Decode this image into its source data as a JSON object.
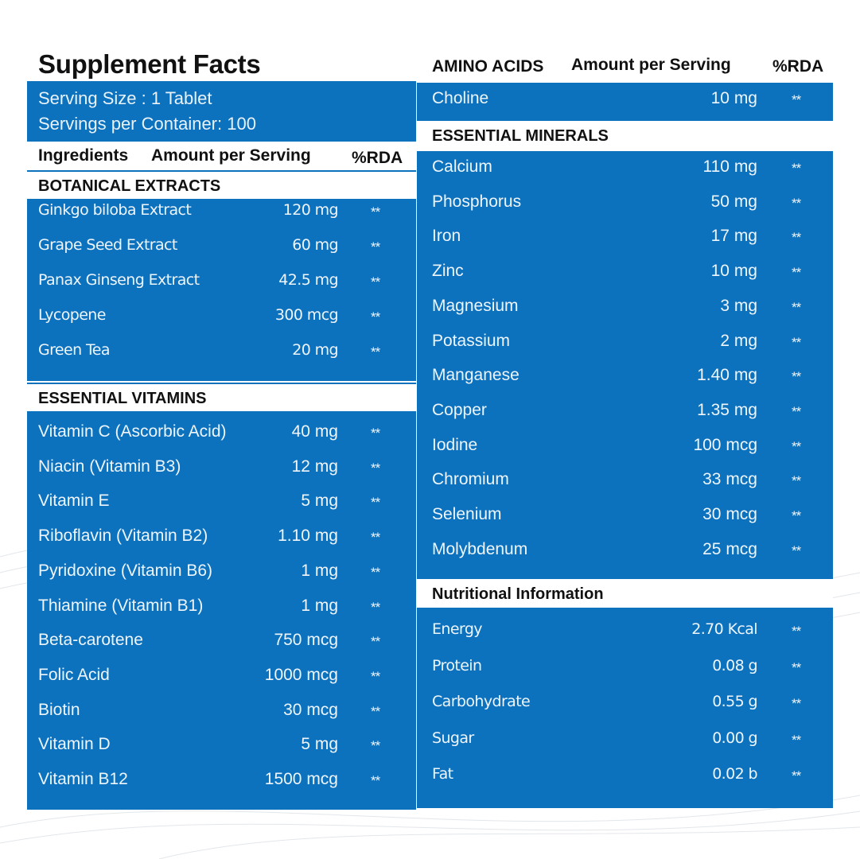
{
  "left": {
    "title": "Supplement Facts",
    "serving_size": "Serving Size : 1 Tablet",
    "servings_per_container": "Servings per Container: 100",
    "column_headers": {
      "ingredients": "Ingredients",
      "amount": "Amount per Serving",
      "rda": "%RDA"
    },
    "botanical": {
      "heading": "BOTANICAL EXTRACTS",
      "items": [
        {
          "name": "Ginkgo biloba Extract",
          "amount": "120 mg",
          "rda": "**"
        },
        {
          "name": "Grape Seed Extract",
          "amount": "60 mg",
          "rda": "**"
        },
        {
          "name": "Panax Ginseng Extract",
          "amount": "42.5 mg",
          "rda": "**"
        },
        {
          "name": "Lycopene",
          "amount": "300 mcg",
          "rda": "**"
        },
        {
          "name": "Green Tea",
          "amount": "20 mg",
          "rda": "**"
        }
      ]
    },
    "vitamins": {
      "heading": "ESSENTIAL VITAMINS",
      "items": [
        {
          "name": "Vitamin C (Ascorbic Acid)",
          "amount": "40 mg",
          "rda": "**"
        },
        {
          "name": "Niacin (Vitamin B3)",
          "amount": "12 mg",
          "rda": "**"
        },
        {
          "name": "Vitamin E",
          "amount": "5 mg",
          "rda": "**"
        },
        {
          "name": "Riboflavin (Vitamin B2)",
          "amount": "1.10 mg",
          "rda": "**"
        },
        {
          "name": "Pyridoxine (Vitamin B6)",
          "amount": "1 mg",
          "rda": "**"
        },
        {
          "name": "Thiamine (Vitamin B1)",
          "amount": "1 mg",
          "rda": "**"
        },
        {
          "name": "Beta-carotene",
          "amount": "750 mcg",
          "rda": "**"
        },
        {
          "name": "Folic Acid",
          "amount": "1000 mcg",
          "rda": "**"
        },
        {
          "name": "Biotin",
          "amount": "30 mcg",
          "rda": "**"
        },
        {
          "name": "Vitamin D",
          "amount": "5 mg",
          "rda": "**"
        },
        {
          "name": "Vitamin B12",
          "amount": "1500 mcg",
          "rda": "**"
        }
      ]
    }
  },
  "right": {
    "column_headers": {
      "ingredients": "AMINO ACIDS",
      "amount": "Amount per Serving",
      "rda": "%RDA"
    },
    "amino": {
      "items": [
        {
          "name": "Choline",
          "amount": "10 mg",
          "rda": "**"
        }
      ]
    },
    "minerals": {
      "heading": "ESSENTIAL MINERALS",
      "items": [
        {
          "name": "Calcium",
          "amount": "110 mg",
          "rda": "**"
        },
        {
          "name": "Phosphorus",
          "amount": "50 mg",
          "rda": "**"
        },
        {
          "name": "Iron",
          "amount": "17 mg",
          "rda": "**"
        },
        {
          "name": "Zinc",
          "amount": "10 mg",
          "rda": "**"
        },
        {
          "name": "Magnesium",
          "amount": "3 mg",
          "rda": "**"
        },
        {
          "name": "Potassium",
          "amount": "2 mg",
          "rda": "**"
        },
        {
          "name": "Manganese",
          "amount": "1.40 mg",
          "rda": "**"
        },
        {
          "name": "Copper",
          "amount": "1.35 mg",
          "rda": "**"
        },
        {
          "name": "Iodine",
          "amount": "100 mcg",
          "rda": "**"
        },
        {
          "name": "Chromium",
          "amount": "33 mcg",
          "rda": "**"
        },
        {
          "name": "Selenium",
          "amount": "30 mcg",
          "rda": "**"
        },
        {
          "name": "Molybdenum",
          "amount": "25 mcg",
          "rda": "**"
        }
      ]
    },
    "nutrition": {
      "heading": "Nutritional Information",
      "items": [
        {
          "name": "Energy",
          "amount": "2.70 Kcal",
          "rda": "**"
        },
        {
          "name": "Protein",
          "amount": "0.08 g",
          "rda": "**"
        },
        {
          "name": "Carbohydrate",
          "amount": "0.55 g",
          "rda": "**"
        },
        {
          "name": "Sugar",
          "amount": "0.00 g",
          "rda": "**"
        },
        {
          "name": "Fat",
          "amount": "0.02 b",
          "rda": "**"
        }
      ]
    }
  },
  "colors": {
    "panel_blue": "#0c72bd",
    "text_dark": "#111111",
    "text_light": "#eef5fc"
  }
}
